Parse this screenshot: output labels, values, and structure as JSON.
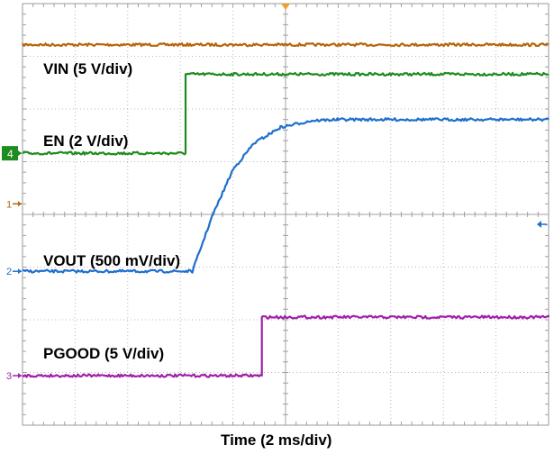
{
  "chart_data": {
    "type": "line",
    "xlabel": "Time (2 ms/div)",
    "divisions": {
      "x": 10,
      "y": 8
    },
    "grid": true,
    "trigger_marker_color": "#f0a030",
    "series": [
      {
        "name": "VIN (5 V/div)",
        "channel": "1",
        "color": "#b5670a",
        "x": [
          0,
          10
        ],
        "y": [
          7.22,
          7.22
        ]
      },
      {
        "name": "EN (2 V/div)",
        "channel": "4",
        "color": "#1e8c1e",
        "x": [
          0,
          3.1,
          3.1,
          10
        ],
        "y": [
          5.16,
          5.16,
          6.66,
          6.66
        ]
      },
      {
        "name": "VOUT (500 mV/div)",
        "channel": "2",
        "color": "#1f6fcc",
        "x": [
          0,
          3.23,
          3.6,
          4.0,
          4.4,
          4.9,
          5.5,
          6.0,
          10
        ],
        "y": [
          2.92,
          2.92,
          3.95,
          4.85,
          5.35,
          5.65,
          5.78,
          5.8,
          5.8
        ]
      },
      {
        "name": "PGOOD (5 V/div)",
        "channel": "3",
        "color": "#a020a8",
        "x": [
          0,
          4.55,
          4.55,
          10
        ],
        "y": [
          0.94,
          0.94,
          2.05,
          2.05
        ]
      }
    ],
    "ground_markers": [
      {
        "channel": "4",
        "y": 5.16
      },
      {
        "channel": "1",
        "y": 4.2
      },
      {
        "channel": "2",
        "y": 2.92
      },
      {
        "channel": "3",
        "y": 0.94
      }
    ]
  }
}
